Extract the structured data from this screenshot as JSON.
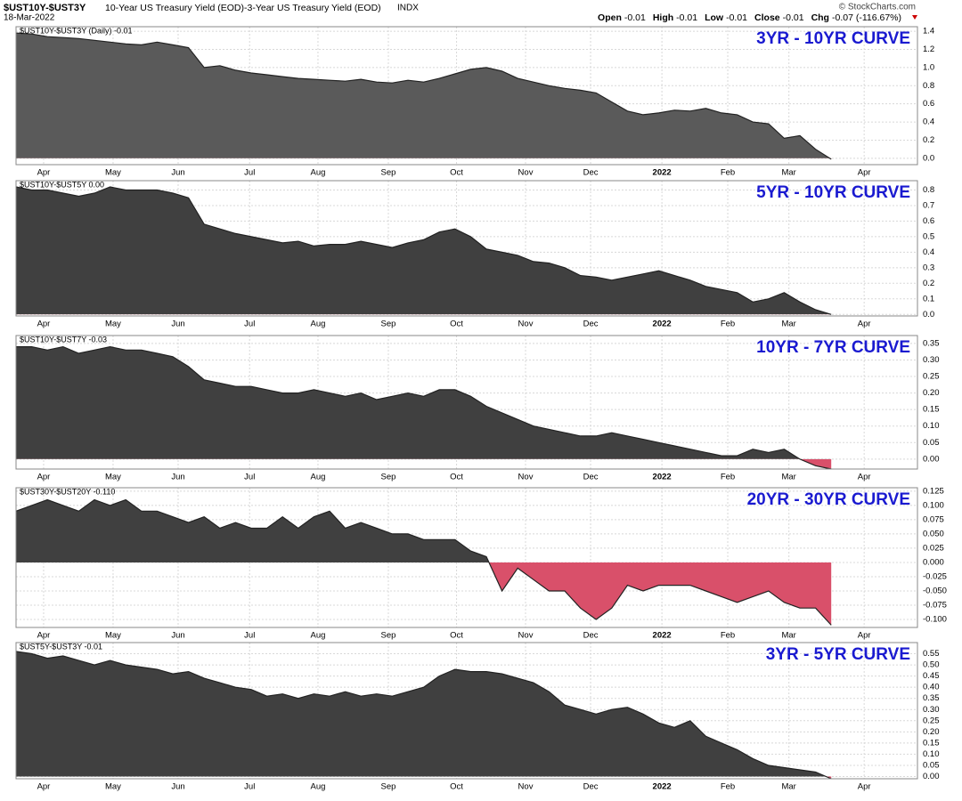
{
  "header": {
    "symbol": "$UST10Y-$UST3Y",
    "description": "10-Year US Treasury Yield (EOD)-3-Year US Treasury Yield (EOD)",
    "exchange": "INDX",
    "date": "18-Mar-2022",
    "source": "© StockCharts.com",
    "stats": [
      {
        "label": "Open",
        "value": "-0.01"
      },
      {
        "label": "High",
        "value": "-0.01"
      },
      {
        "label": "Low",
        "value": "-0.01"
      },
      {
        "label": "Close",
        "value": "-0.01"
      },
      {
        "label": "Chg",
        "value": "-0.07 (-116.67%)"
      }
    ]
  },
  "chart_data": [
    {
      "type": "area",
      "title": "3YR - 10YR CURVE",
      "label": "$UST10Y-$UST3Y (Daily) -0.01",
      "color": "#5a5a5a",
      "negative_color": "#d9506a",
      "grid": true,
      "x": [
        0,
        1,
        2,
        3,
        4,
        5,
        6,
        7,
        8,
        9,
        10,
        11,
        12,
        13,
        14,
        15,
        16,
        17,
        18,
        19,
        20,
        21,
        22,
        23,
        24,
        25,
        26,
        27,
        28,
        29,
        30,
        31,
        32,
        33,
        34,
        35,
        36,
        37,
        38,
        39,
        40,
        41,
        42,
        43,
        44,
        45,
        46,
        47,
        48,
        49,
        50,
        51,
        52
      ],
      "values": [
        1.38,
        1.37,
        1.34,
        1.33,
        1.32,
        1.3,
        1.28,
        1.26,
        1.25,
        1.28,
        1.25,
        1.22,
        1.0,
        1.02,
        0.97,
        0.94,
        0.92,
        0.9,
        0.88,
        0.87,
        0.86,
        0.85,
        0.87,
        0.84,
        0.83,
        0.86,
        0.84,
        0.88,
        0.93,
        0.98,
        1.0,
        0.96,
        0.88,
        0.84,
        0.8,
        0.77,
        0.75,
        0.72,
        0.62,
        0.52,
        0.48,
        0.5,
        0.53,
        0.52,
        0.55,
        0.5,
        0.48,
        0.4,
        0.38,
        0.22,
        0.25,
        0.1,
        -0.01
      ],
      "xlim": [
        0,
        57.5
      ],
      "xticks": [
        {
          "value": 1.76,
          "label": "Apr"
        },
        {
          "value": 6.19,
          "label": "May"
        },
        {
          "value": 10.34,
          "label": "Jun"
        },
        {
          "value": 14.9,
          "label": "Jul"
        },
        {
          "value": 19.26,
          "label": "Aug"
        },
        {
          "value": 23.75,
          "label": "Sep"
        },
        {
          "value": 28.1,
          "label": "Oct"
        },
        {
          "value": 32.5,
          "label": "Nov"
        },
        {
          "value": 36.65,
          "label": "Dec"
        },
        {
          "value": 41.2,
          "label": "2022"
        },
        {
          "value": 45.4,
          "label": "Feb"
        },
        {
          "value": 49.3,
          "label": "Mar"
        },
        {
          "value": 54.1,
          "label": "Apr"
        }
      ],
      "ylim": [
        -0.07,
        1.45
      ],
      "yticks": [
        {
          "value": 0,
          "label": "0.0"
        },
        0.2,
        0.4,
        0.6,
        0.8,
        {
          "value": 1,
          "label": "1.0"
        },
        1.2,
        1.4
      ]
    },
    {
      "type": "area",
      "title": "5YR - 10YR CURVE",
      "label": "$UST10Y-$UST5Y 0.00",
      "color": "#404040",
      "negative_color": "#d9506a",
      "grid": true,
      "x": [
        0,
        1,
        2,
        3,
        4,
        5,
        6,
        7,
        8,
        9,
        10,
        11,
        12,
        13,
        14,
        15,
        16,
        17,
        18,
        19,
        20,
        21,
        22,
        23,
        24,
        25,
        26,
        27,
        28,
        29,
        30,
        31,
        32,
        33,
        34,
        35,
        36,
        37,
        38,
        39,
        40,
        41,
        42,
        43,
        44,
        45,
        46,
        47,
        48,
        49,
        50,
        51,
        52
      ],
      "values": [
        0.82,
        0.8,
        0.8,
        0.78,
        0.76,
        0.78,
        0.82,
        0.8,
        0.8,
        0.8,
        0.78,
        0.75,
        0.58,
        0.55,
        0.52,
        0.5,
        0.48,
        0.46,
        0.47,
        0.44,
        0.45,
        0.45,
        0.47,
        0.45,
        0.43,
        0.46,
        0.48,
        0.53,
        0.55,
        0.5,
        0.42,
        0.4,
        0.38,
        0.34,
        0.33,
        0.3,
        0.25,
        0.24,
        0.22,
        0.24,
        0.26,
        0.28,
        0.25,
        0.22,
        0.18,
        0.16,
        0.14,
        0.08,
        0.1,
        0.14,
        0.08,
        0.03,
        0.0
      ],
      "xlim": [
        0,
        57.5
      ],
      "xticks": [
        {
          "value": 1.76,
          "label": "Apr"
        },
        {
          "value": 6.19,
          "label": "May"
        },
        {
          "value": 10.34,
          "label": "Jun"
        },
        {
          "value": 14.9,
          "label": "Jul"
        },
        {
          "value": 19.26,
          "label": "Aug"
        },
        {
          "value": 23.75,
          "label": "Sep"
        },
        {
          "value": 28.1,
          "label": "Oct"
        },
        {
          "value": 32.5,
          "label": "Nov"
        },
        {
          "value": 36.65,
          "label": "Dec"
        },
        {
          "value": 41.2,
          "label": "2022"
        },
        {
          "value": 45.4,
          "label": "Feb"
        },
        {
          "value": 49.3,
          "label": "Mar"
        },
        {
          "value": 54.1,
          "label": "Apr"
        }
      ],
      "ylim": [
        -0.01,
        0.86
      ],
      "yticks": [
        {
          "value": 0,
          "label": "0.0"
        },
        0.1,
        0.2,
        0.3,
        0.4,
        0.5,
        0.6,
        0.7,
        0.8
      ]
    },
    {
      "type": "area",
      "title": "10YR - 7YR CURVE",
      "label": "$UST10Y-$UST7Y -0.03",
      "color": "#404040",
      "negative_color": "#d9506a",
      "grid": true,
      "x": [
        0,
        1,
        2,
        3,
        4,
        5,
        6,
        7,
        8,
        9,
        10,
        11,
        12,
        13,
        14,
        15,
        16,
        17,
        18,
        19,
        20,
        21,
        22,
        23,
        24,
        25,
        26,
        27,
        28,
        29,
        30,
        31,
        32,
        33,
        34,
        35,
        36,
        37,
        38,
        39,
        40,
        41,
        42,
        43,
        44,
        45,
        46,
        47,
        48,
        49,
        50,
        51,
        52
      ],
      "values": [
        0.34,
        0.34,
        0.33,
        0.34,
        0.32,
        0.33,
        0.34,
        0.33,
        0.33,
        0.32,
        0.31,
        0.28,
        0.24,
        0.23,
        0.22,
        0.22,
        0.21,
        0.2,
        0.2,
        0.21,
        0.2,
        0.19,
        0.2,
        0.18,
        0.19,
        0.2,
        0.19,
        0.21,
        0.21,
        0.19,
        0.16,
        0.14,
        0.12,
        0.1,
        0.09,
        0.08,
        0.07,
        0.07,
        0.08,
        0.07,
        0.06,
        0.05,
        0.04,
        0.03,
        0.02,
        0.01,
        0.01,
        0.03,
        0.02,
        0.03,
        0.0,
        -0.02,
        -0.03
      ],
      "xlim": [
        0,
        57.5
      ],
      "xticks": [
        {
          "value": 1.76,
          "label": "Apr"
        },
        {
          "value": 6.19,
          "label": "May"
        },
        {
          "value": 10.34,
          "label": "Jun"
        },
        {
          "value": 14.9,
          "label": "Jul"
        },
        {
          "value": 19.26,
          "label": "Aug"
        },
        {
          "value": 23.75,
          "label": "Sep"
        },
        {
          "value": 28.1,
          "label": "Oct"
        },
        {
          "value": 32.5,
          "label": "Nov"
        },
        {
          "value": 36.65,
          "label": "Dec"
        },
        {
          "value": 41.2,
          "label": "2022"
        },
        {
          "value": 45.4,
          "label": "Feb"
        },
        {
          "value": 49.3,
          "label": "Mar"
        },
        {
          "value": 54.1,
          "label": "Apr"
        }
      ],
      "ylim": [
        -0.03,
        0.374
      ],
      "yticks": [
        {
          "value": 0,
          "label": "0.00"
        },
        {
          "value": 0.05,
          "label": "0.05"
        },
        {
          "value": 0.1,
          "label": "0.10"
        },
        0.15,
        {
          "value": 0.2,
          "label": "0.20"
        },
        0.25,
        {
          "value": 0.3,
          "label": "0.30"
        },
        0.35
      ]
    },
    {
      "type": "area",
      "title": "20YR - 30YR CURVE",
      "label": "$UST30Y-$UST20Y -0.110",
      "color": "#404040",
      "negative_color": "#d9506a",
      "grid": true,
      "x": [
        0,
        1,
        2,
        3,
        4,
        5,
        6,
        7,
        8,
        9,
        10,
        11,
        12,
        13,
        14,
        15,
        16,
        17,
        18,
        19,
        20,
        21,
        22,
        23,
        24,
        25,
        26,
        27,
        28,
        29,
        30,
        31,
        32,
        33,
        34,
        35,
        36,
        37,
        38,
        39,
        40,
        41,
        42,
        43,
        44,
        45,
        46,
        47,
        48,
        49,
        50,
        51,
        52
      ],
      "values": [
        0.09,
        0.1,
        0.11,
        0.1,
        0.09,
        0.11,
        0.1,
        0.11,
        0.09,
        0.09,
        0.08,
        0.07,
        0.08,
        0.06,
        0.07,
        0.06,
        0.06,
        0.08,
        0.06,
        0.08,
        0.09,
        0.06,
        0.07,
        0.06,
        0.05,
        0.05,
        0.04,
        0.04,
        0.04,
        0.02,
        0.01,
        -0.05,
        -0.01,
        -0.03,
        -0.05,
        -0.05,
        -0.08,
        -0.1,
        -0.08,
        -0.04,
        -0.05,
        -0.04,
        -0.04,
        -0.04,
        -0.05,
        -0.06,
        -0.07,
        -0.06,
        -0.05,
        -0.07,
        -0.08,
        -0.08,
        -0.11
      ],
      "xlim": [
        0,
        57.5
      ],
      "xticks": [
        {
          "value": 1.76,
          "label": "Apr"
        },
        {
          "value": 6.19,
          "label": "May"
        },
        {
          "value": 10.34,
          "label": "Jun"
        },
        {
          "value": 14.9,
          "label": "Jul"
        },
        {
          "value": 19.26,
          "label": "Aug"
        },
        {
          "value": 23.75,
          "label": "Sep"
        },
        {
          "value": 28.1,
          "label": "Oct"
        },
        {
          "value": 32.5,
          "label": "Nov"
        },
        {
          "value": 36.65,
          "label": "Dec"
        },
        {
          "value": 41.2,
          "label": "2022"
        },
        {
          "value": 45.4,
          "label": "Feb"
        },
        {
          "value": 49.3,
          "label": "Mar"
        },
        {
          "value": 54.1,
          "label": "Apr"
        }
      ],
      "ylim": [
        -0.114,
        0.131
      ],
      "yticks": [
        {
          "value": -0.1,
          "label": "-0.100"
        },
        -0.075,
        {
          "value": -0.05,
          "label": "-0.050"
        },
        -0.025,
        {
          "value": 0,
          "label": "0.000"
        },
        0.025,
        {
          "value": 0.05,
          "label": "0.050"
        },
        0.075,
        {
          "value": 0.1,
          "label": "0.100"
        },
        0.125
      ]
    },
    {
      "type": "area",
      "title": "3YR - 5YR CURVE",
      "label": "$UST5Y-$UST3Y -0.01",
      "color": "#404040",
      "negative_color": "#d9506a",
      "grid": true,
      "x": [
        0,
        1,
        2,
        3,
        4,
        5,
        6,
        7,
        8,
        9,
        10,
        11,
        12,
        13,
        14,
        15,
        16,
        17,
        18,
        19,
        20,
        21,
        22,
        23,
        24,
        25,
        26,
        27,
        28,
        29,
        30,
        31,
        32,
        33,
        34,
        35,
        36,
        37,
        38,
        39,
        40,
        41,
        42,
        43,
        44,
        45,
        46,
        47,
        48,
        49,
        50,
        51,
        52
      ],
      "values": [
        0.56,
        0.55,
        0.53,
        0.54,
        0.52,
        0.5,
        0.52,
        0.5,
        0.49,
        0.48,
        0.46,
        0.47,
        0.44,
        0.42,
        0.4,
        0.39,
        0.36,
        0.37,
        0.35,
        0.37,
        0.36,
        0.38,
        0.36,
        0.37,
        0.36,
        0.38,
        0.4,
        0.45,
        0.48,
        0.47,
        0.47,
        0.46,
        0.44,
        0.42,
        0.38,
        0.32,
        0.3,
        0.28,
        0.3,
        0.31,
        0.28,
        0.24,
        0.22,
        0.25,
        0.18,
        0.15,
        0.12,
        0.08,
        0.05,
        0.04,
        0.03,
        0.02,
        -0.01
      ],
      "xlim": [
        0,
        57.5
      ],
      "xticks": [
        {
          "value": 1.76,
          "label": "Apr"
        },
        {
          "value": 6.19,
          "label": "May"
        },
        {
          "value": 10.34,
          "label": "Jun"
        },
        {
          "value": 14.9,
          "label": "Jul"
        },
        {
          "value": 19.26,
          "label": "Aug"
        },
        {
          "value": 23.75,
          "label": "Sep"
        },
        {
          "value": 28.1,
          "label": "Oct"
        },
        {
          "value": 32.5,
          "label": "Nov"
        },
        {
          "value": 36.65,
          "label": "Dec"
        },
        {
          "value": 41.2,
          "label": "2022"
        },
        {
          "value": 45.4,
          "label": "Feb"
        },
        {
          "value": 49.3,
          "label": "Mar"
        },
        {
          "value": 54.1,
          "label": "Apr"
        }
      ],
      "ylim": [
        -0.01,
        0.6
      ],
      "yticks": [
        {
          "value": 0,
          "label": "0.00"
        },
        {
          "value": 0.05,
          "label": "0.05"
        },
        {
          "value": 0.1,
          "label": "0.10"
        },
        0.15,
        {
          "value": 0.2,
          "label": "0.20"
        },
        0.25,
        {
          "value": 0.3,
          "label": "0.30"
        },
        0.35,
        {
          "value": 0.4,
          "label": "0.40"
        },
        0.45,
        {
          "value": 0.5,
          "label": "0.50"
        },
        0.55
      ]
    }
  ]
}
